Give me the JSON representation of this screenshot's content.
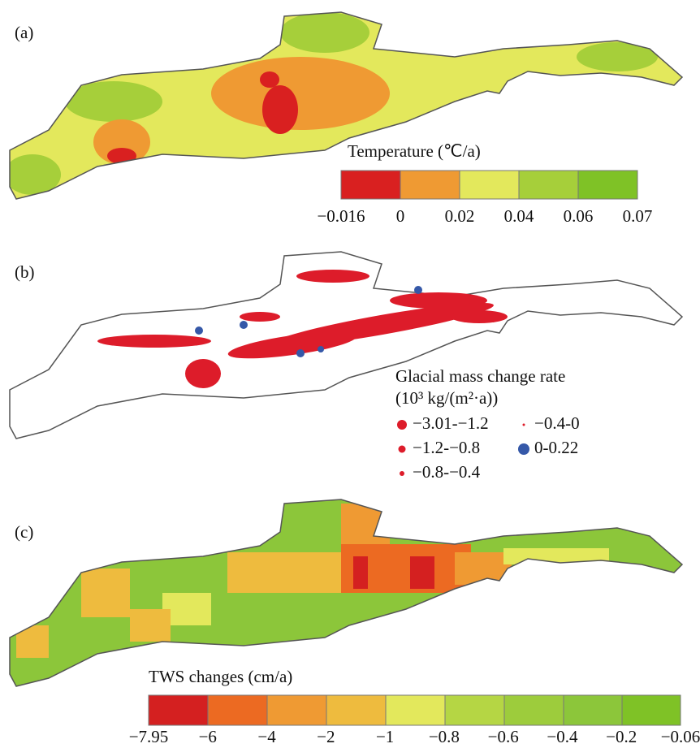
{
  "panel_a": {
    "label": "(a)",
    "legend": {
      "title": "Temperature (℃/a)",
      "ticks": [
        "−0.016",
        "0",
        "0.02",
        "0.04",
        "0.06",
        "0.07"
      ]
    }
  },
  "panel_b": {
    "label": "(b)",
    "legend": {
      "title": "Glacial mass change rate",
      "unit": "(10³ kg/(m²·a))",
      "items": [
        "−3.01-−1.2",
        "−1.2-−0.8",
        "−0.8-−0.4",
        "−0.4-0",
        "0-0.22"
      ]
    }
  },
  "panel_c": {
    "label": "(c)",
    "legend": {
      "title": "TWS changes (cm/a)",
      "ticks": [
        "−7.95",
        "−6",
        "−4",
        "−2",
        "−1",
        "−0.8",
        "−0.6",
        "−0.4",
        "−0.2",
        "−0.06"
      ]
    }
  }
}
